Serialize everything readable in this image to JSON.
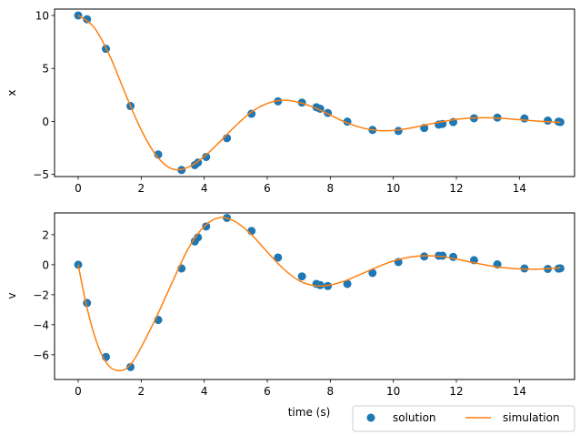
{
  "chart_data": [
    {
      "type": "line",
      "ylabel": "x",
      "xlabel": "",
      "xlim": [
        -0.75,
        15.75
      ],
      "ylim": [
        -5.2,
        10.6
      ],
      "xticks": [
        0,
        2,
        4,
        6,
        8,
        10,
        12,
        14
      ],
      "yticks": [
        -5,
        0,
        5,
        10
      ],
      "series": [
        {
          "name": "solution",
          "style": "markers",
          "color": "#1f77b4",
          "x": [
            0,
            0.28,
            0.88,
            1.66,
            2.54,
            3.28,
            3.7,
            3.8,
            4.06,
            4.72,
            5.5,
            6.34,
            7.1,
            7.56,
            7.68,
            7.92,
            8.54,
            9.34,
            10.16,
            10.98,
            11.44,
            11.56,
            11.9,
            12.56,
            13.3,
            14.16,
            14.9,
            15.24,
            15.3
          ],
          "y": [
            10,
            9.65,
            6.85,
            1.45,
            -3.12,
            -4.58,
            -4.12,
            -3.88,
            -3.35,
            -1.58,
            0.72,
            1.9,
            1.78,
            1.34,
            1.2,
            0.8,
            -0.02,
            -0.8,
            -0.9,
            -0.62,
            -0.3,
            -0.24,
            -0.06,
            0.3,
            0.36,
            0.28,
            0.08,
            -0.02,
            -0.06
          ]
        },
        {
          "name": "simulation",
          "style": "line",
          "color": "#ff7f0e",
          "x": [
            0,
            0.5,
            1.0,
            1.5,
            2.0,
            2.5,
            3.0,
            3.5,
            4.0,
            4.5,
            5.0,
            5.5,
            6.0,
            6.5,
            7.0,
            7.5,
            8.0,
            8.5,
            9.0,
            9.5,
            10.0,
            10.5,
            11.0,
            11.5,
            12.0,
            12.5,
            13.0,
            13.5,
            14.0,
            14.5,
            15.0,
            15.3
          ],
          "y": [
            10,
            8.9,
            6.2,
            2.6,
            -0.8,
            -3.3,
            -4.5,
            -4.3,
            -3.3,
            -1.9,
            -0.4,
            0.9,
            1.7,
            2.0,
            1.8,
            1.3,
            0.6,
            -0.1,
            -0.6,
            -0.85,
            -0.85,
            -0.65,
            -0.35,
            -0.05,
            0.2,
            0.33,
            0.35,
            0.28,
            0.17,
            0.05,
            -0.05,
            -0.08
          ]
        }
      ]
    },
    {
      "type": "line",
      "ylabel": "v",
      "xlabel": "time (s)",
      "xlim": [
        -0.75,
        15.75
      ],
      "ylim": [
        -7.65,
        3.45
      ],
      "xticks": [
        0,
        2,
        4,
        6,
        8,
        10,
        12,
        14
      ],
      "yticks": [
        -6,
        -4,
        -2,
        0,
        2
      ],
      "series": [
        {
          "name": "solution",
          "style": "markers",
          "color": "#1f77b4",
          "x": [
            0,
            0.28,
            0.88,
            1.66,
            2.54,
            3.28,
            3.7,
            3.8,
            4.06,
            4.72,
            5.5,
            6.34,
            7.1,
            7.56,
            7.68,
            7.92,
            8.54,
            9.34,
            10.16,
            10.98,
            11.44,
            11.56,
            11.9,
            12.56,
            13.3,
            14.16,
            14.9,
            15.24,
            15.3
          ],
          "y": [
            0,
            -2.55,
            -6.15,
            -6.82,
            -3.68,
            -0.25,
            1.55,
            1.82,
            2.55,
            3.12,
            2.25,
            0.48,
            -0.78,
            -1.28,
            -1.36,
            -1.42,
            -1.28,
            -0.55,
            0.18,
            0.55,
            0.6,
            0.6,
            0.52,
            0.3,
            0.02,
            -0.25,
            -0.28,
            -0.26,
            -0.24
          ]
        },
        {
          "name": "simulation",
          "style": "line",
          "color": "#ff7f0e",
          "x": [
            0,
            0.25,
            0.5,
            0.75,
            1.0,
            1.25,
            1.5,
            1.75,
            2.0,
            2.5,
            3.0,
            3.5,
            4.0,
            4.5,
            5.0,
            5.5,
            6.0,
            6.5,
            7.0,
            7.5,
            8.0,
            8.5,
            9.0,
            9.5,
            10.0,
            10.5,
            11.0,
            11.5,
            12.0,
            12.5,
            13.0,
            13.5,
            14.0,
            14.5,
            15.0,
            15.3
          ],
          "y": [
            0,
            -2.6,
            -4.6,
            -6.0,
            -6.8,
            -7.05,
            -6.95,
            -6.4,
            -5.5,
            -3.4,
            -1.1,
            1.1,
            2.55,
            3.15,
            2.85,
            2.0,
            0.85,
            -0.25,
            -1.05,
            -1.4,
            -1.35,
            -1.05,
            -0.6,
            -0.15,
            0.25,
            0.5,
            0.6,
            0.55,
            0.38,
            0.15,
            -0.05,
            -0.2,
            -0.28,
            -0.3,
            -0.25,
            -0.2
          ]
        }
      ]
    }
  ],
  "legend": {
    "items": [
      {
        "label": "solution",
        "marker": "circle",
        "color": "#1f77b4"
      },
      {
        "label": "simulation",
        "marker": "line",
        "color": "#ff7f0e"
      }
    ],
    "placement": "bottom-right"
  }
}
